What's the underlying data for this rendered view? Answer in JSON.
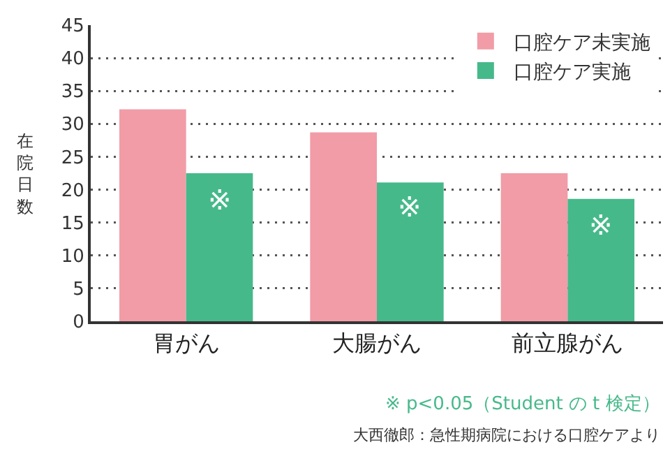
{
  "chart_data": {
    "type": "bar",
    "ylabel": "在院日数",
    "categories": [
      "胃がん",
      "大腸がん",
      "前立腺がん"
    ],
    "series": [
      {
        "name": "口腔ケア未実施",
        "color": "#f19ca6",
        "values": [
          32.2,
          28.7,
          22.5
        ]
      },
      {
        "name": "口腔ケア実施",
        "color": "#46b98a",
        "values": [
          22.5,
          21.1,
          18.6
        ]
      }
    ],
    "ylim": [
      0,
      45
    ],
    "yticks": [
      0,
      5,
      10,
      15,
      20,
      25,
      30,
      35,
      40,
      45
    ],
    "grid": "y",
    "line_style": "dotted",
    "legend": "top right",
    "annotations": [
      {
        "text": "※",
        "x": "胃がん",
        "y": 18.4
      },
      {
        "text": "※",
        "x": "大腸がん",
        "y": 17.4
      },
      {
        "text": "※",
        "x": "前立腺がん",
        "y": 14.7
      },
      "※ p<0.05（Student の t 検定）",
      "大西徹郎：急性期病院における口腔ケアより"
    ]
  }
}
